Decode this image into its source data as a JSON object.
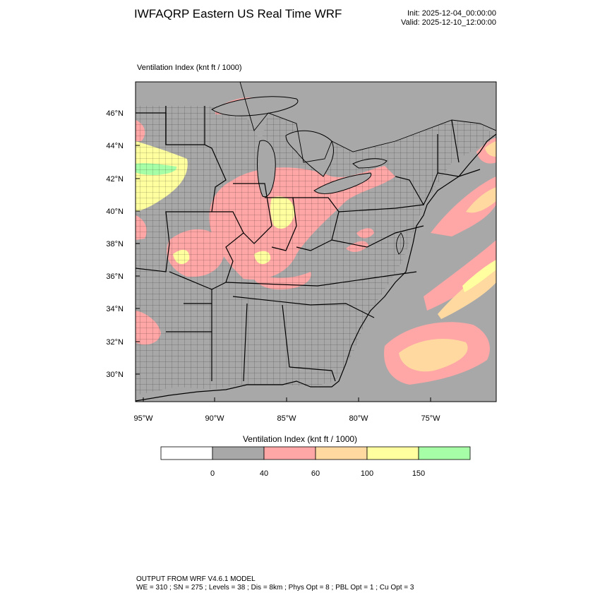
{
  "header": {
    "title": "IWFAQRP Eastern US Real Time WRF",
    "init": "Init: 2025-12-04_00:00:00",
    "valid": "Valid: 2025-12-10_12:00:00"
  },
  "map": {
    "field_label": "Ventilation Index   (knt ft / 1000)",
    "lat_ticks": [
      "46°N",
      "44°N",
      "42°N",
      "40°N",
      "38°N",
      "36°N",
      "34°N",
      "32°N",
      "30°N"
    ],
    "lon_ticks": [
      "95°W",
      "90°W",
      "85°W",
      "80°W",
      "75°W"
    ],
    "colors": {
      "background": "#a8a8a8",
      "c40_60": "#ffa6a6",
      "c60_100": "#ffd9a0",
      "c100_150": "#ffff9f",
      "c150_plus": "#a6ffa6",
      "borders": "#000000"
    }
  },
  "legend": {
    "title": "Ventilation Index  (knt ft / 1000)",
    "bins": [
      {
        "color": "#ffffff"
      },
      {
        "color": "#a8a8a8"
      },
      {
        "color": "#ffa6a6"
      },
      {
        "color": "#ffd9a0"
      },
      {
        "color": "#ffff9f"
      },
      {
        "color": "#a6ffa6"
      }
    ],
    "labels": [
      "0",
      "40",
      "60",
      "100",
      "150"
    ]
  },
  "footer": {
    "line1": "OUTPUT FROM WRF V4.6.1 MODEL",
    "line2": "WE = 310 ; SN = 275 ; Levels = 38 ; Dis = 8km ; Phys Opt = 8 ; PBL Opt = 1 ; Cu Opt = 3"
  }
}
